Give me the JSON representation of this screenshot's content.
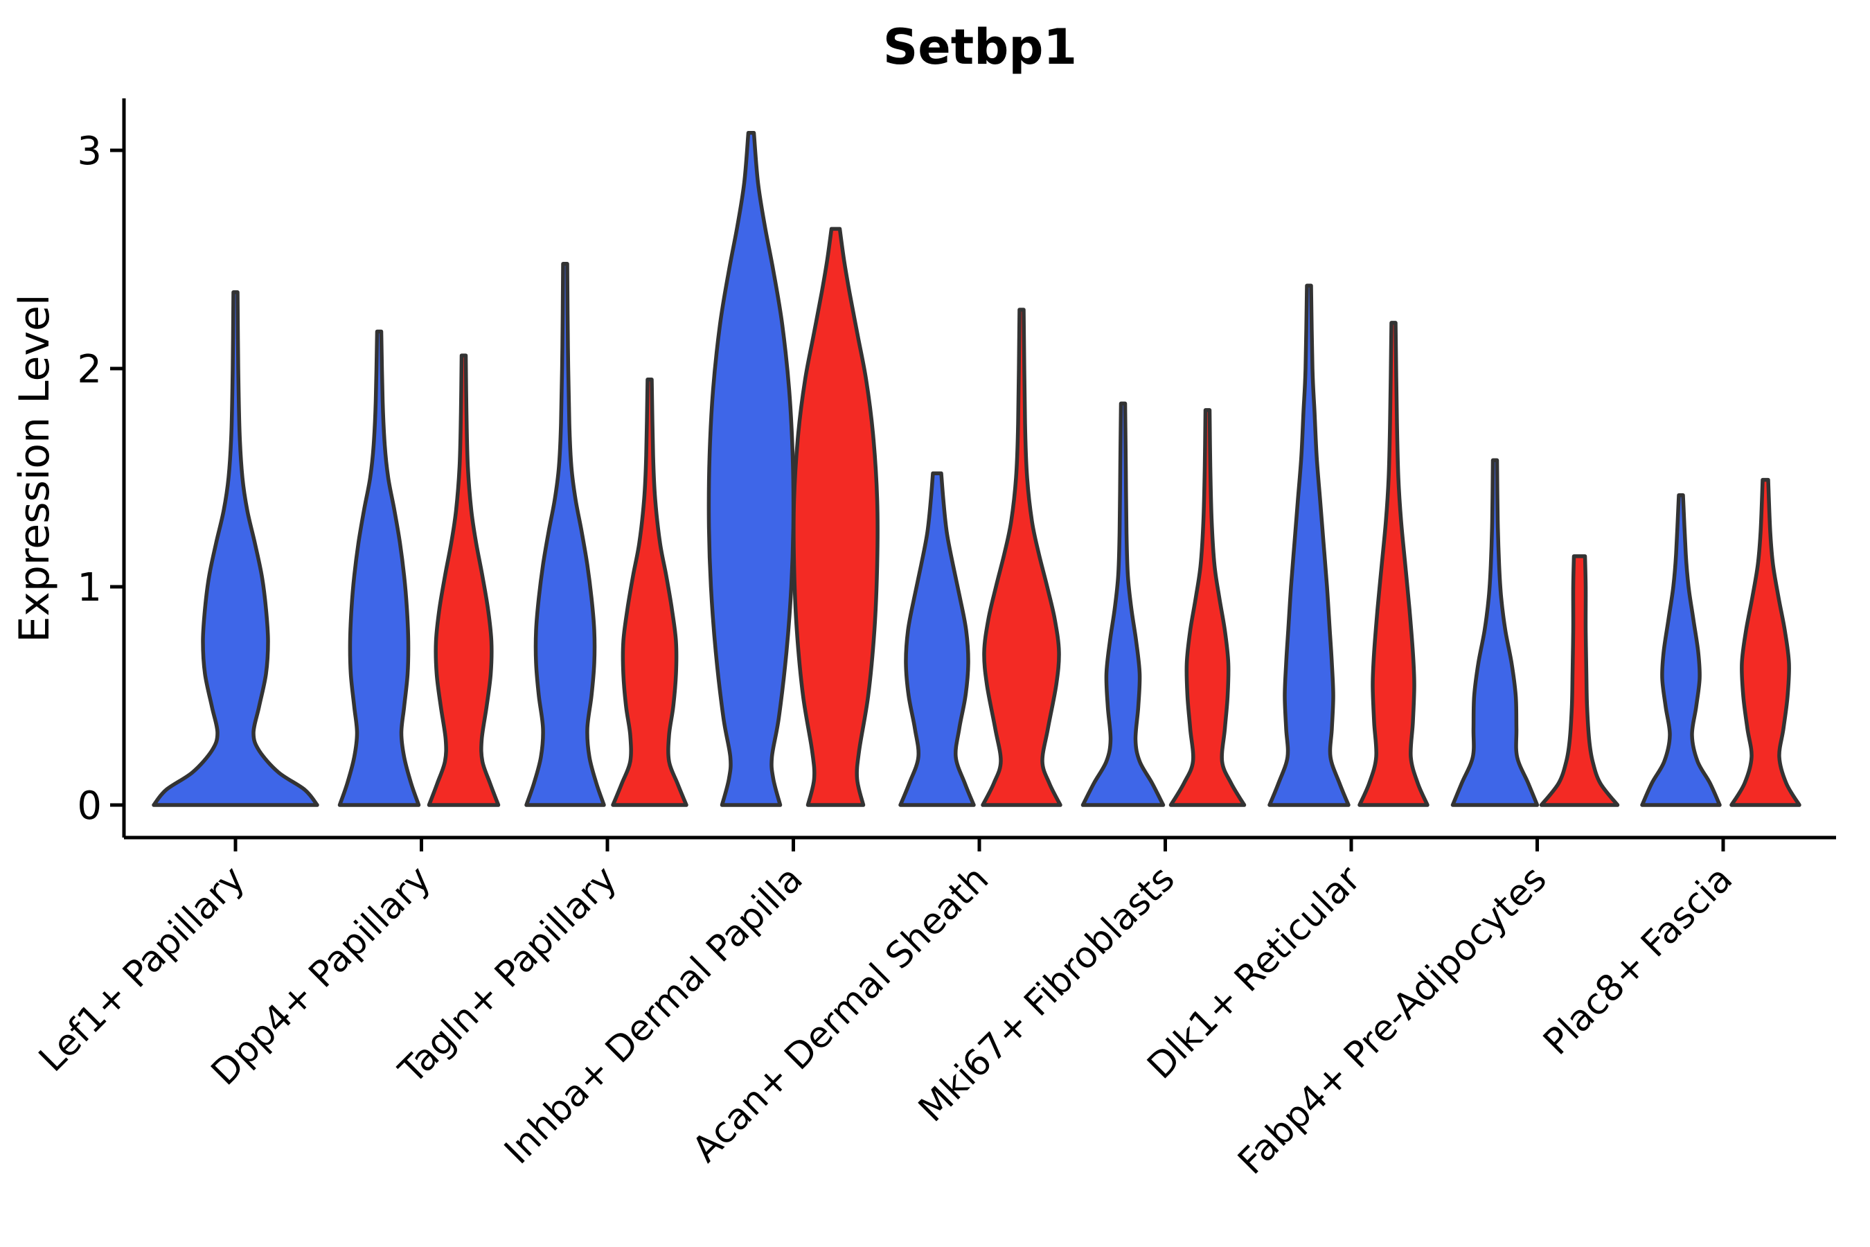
{
  "chart_data": {
    "type": "violin",
    "title": "Setbp1",
    "ylabel": "Expression Level",
    "xlabel": "",
    "ylim": [
      0,
      3.24
    ],
    "yticks": [
      "0",
      "1",
      "2",
      "3"
    ],
    "grid": false,
    "legend": "none",
    "categories": [
      "Lef1+ Papillary",
      "Dpp4+ Papillary",
      "Tagln+ Papillary",
      "Inhba+ Dermal Papilla",
      "Acan+ Dermal Sheath",
      "Mki67+ Fibroblasts",
      "Dlk1+ Reticular",
      "Fabp4+ Pre-Adipocytes",
      "Plac8+ Fascia"
    ],
    "series_colors": {
      "blue": "#3E66E8",
      "red": "#F32A24"
    },
    "outline_color": "#333333",
    "axis_color": "#000000",
    "violins": [
      {
        "category": "Lef1+ Papillary",
        "group": 0,
        "side": "single",
        "color": "blue",
        "max_expression": 2.35,
        "profile": [
          [
            0,
            118
          ],
          [
            0.07,
            100
          ],
          [
            0.15,
            62
          ],
          [
            0.25,
            34
          ],
          [
            0.33,
            26
          ],
          [
            0.45,
            34
          ],
          [
            0.6,
            44
          ],
          [
            0.75,
            47
          ],
          [
            0.9,
            44
          ],
          [
            1.05,
            38
          ],
          [
            1.2,
            28
          ],
          [
            1.35,
            17
          ],
          [
            1.5,
            10
          ],
          [
            1.7,
            6
          ],
          [
            2.0,
            4
          ],
          [
            2.35,
            3
          ]
        ]
      },
      {
        "category": "Dpp4+ Papillary",
        "group": 1,
        "side": "left",
        "color": "blue",
        "max_expression": 2.17,
        "profile": [
          [
            0,
            57
          ],
          [
            0.1,
            46
          ],
          [
            0.22,
            36
          ],
          [
            0.33,
            32
          ],
          [
            0.45,
            36
          ],
          [
            0.6,
            41
          ],
          [
            0.75,
            42
          ],
          [
            0.9,
            40
          ],
          [
            1.05,
            36
          ],
          [
            1.2,
            30
          ],
          [
            1.35,
            22
          ],
          [
            1.5,
            13
          ],
          [
            1.65,
            8
          ],
          [
            1.85,
            5
          ],
          [
            2.17,
            3
          ]
        ]
      },
      {
        "category": "Dpp4+ Papillary",
        "group": 1,
        "side": "right",
        "color": "red",
        "max_expression": 2.06,
        "profile": [
          [
            0,
            50
          ],
          [
            0.1,
            38
          ],
          [
            0.2,
            27
          ],
          [
            0.3,
            26
          ],
          [
            0.45,
            33
          ],
          [
            0.6,
            39
          ],
          [
            0.75,
            40
          ],
          [
            0.9,
            35
          ],
          [
            1.05,
            27
          ],
          [
            1.2,
            18
          ],
          [
            1.35,
            11
          ],
          [
            1.55,
            6
          ],
          [
            1.8,
            4
          ],
          [
            2.06,
            3
          ]
        ]
      },
      {
        "category": "Tagln+ Papillary",
        "group": 2,
        "side": "left",
        "color": "blue",
        "max_expression": 2.48,
        "profile": [
          [
            0,
            56
          ],
          [
            0.1,
            45
          ],
          [
            0.22,
            35
          ],
          [
            0.35,
            32
          ],
          [
            0.5,
            38
          ],
          [
            0.65,
            42
          ],
          [
            0.8,
            42
          ],
          [
            0.95,
            38
          ],
          [
            1.1,
            32
          ],
          [
            1.25,
            24
          ],
          [
            1.4,
            15
          ],
          [
            1.55,
            9
          ],
          [
            1.75,
            6
          ],
          [
            2.1,
            4
          ],
          [
            2.48,
            3
          ]
        ]
      },
      {
        "category": "Tagln+ Papillary",
        "group": 2,
        "side": "right",
        "color": "red",
        "max_expression": 1.95,
        "profile": [
          [
            0,
            53
          ],
          [
            0.1,
            40
          ],
          [
            0.2,
            28
          ],
          [
            0.32,
            28
          ],
          [
            0.45,
            34
          ],
          [
            0.6,
            38
          ],
          [
            0.75,
            38
          ],
          [
            0.9,
            32
          ],
          [
            1.05,
            24
          ],
          [
            1.2,
            15
          ],
          [
            1.4,
            8
          ],
          [
            1.6,
            5
          ],
          [
            1.95,
            3
          ]
        ]
      },
      {
        "category": "Inhba+ Dermal Papilla",
        "group": 3,
        "side": "left",
        "color": "blue",
        "max_expression": 3.08,
        "profile": [
          [
            0,
            42
          ],
          [
            0.12,
            32
          ],
          [
            0.22,
            30
          ],
          [
            0.4,
            40
          ],
          [
            0.7,
            51
          ],
          [
            1.0,
            58
          ],
          [
            1.3,
            61
          ],
          [
            1.6,
            60
          ],
          [
            1.9,
            55
          ],
          [
            2.2,
            45
          ],
          [
            2.45,
            32
          ],
          [
            2.65,
            20
          ],
          [
            2.85,
            10
          ],
          [
            3.08,
            4
          ]
        ]
      },
      {
        "category": "Inhba+ Dermal Papilla",
        "group": 3,
        "side": "right",
        "color": "red",
        "max_expression": 2.64,
        "profile": [
          [
            0,
            40
          ],
          [
            0.12,
            31
          ],
          [
            0.25,
            34
          ],
          [
            0.5,
            47
          ],
          [
            0.8,
            56
          ],
          [
            1.1,
            60
          ],
          [
            1.4,
            60
          ],
          [
            1.7,
            54
          ],
          [
            1.95,
            44
          ],
          [
            2.15,
            32
          ],
          [
            2.35,
            20
          ],
          [
            2.5,
            12
          ],
          [
            2.64,
            6
          ]
        ]
      },
      {
        "category": "Acan+ Dermal Sheath",
        "group": 4,
        "side": "left",
        "color": "blue",
        "max_expression": 1.52,
        "profile": [
          [
            0,
            53
          ],
          [
            0.1,
            40
          ],
          [
            0.22,
            27
          ],
          [
            0.35,
            32
          ],
          [
            0.5,
            41
          ],
          [
            0.65,
            45
          ],
          [
            0.8,
            42
          ],
          [
            0.95,
            33
          ],
          [
            1.1,
            23
          ],
          [
            1.25,
            14
          ],
          [
            1.4,
            9
          ],
          [
            1.52,
            6
          ]
        ]
      },
      {
        "category": "Acan+ Dermal Sheath",
        "group": 4,
        "side": "right",
        "color": "red",
        "max_expression": 2.27,
        "profile": [
          [
            0,
            56
          ],
          [
            0.1,
            40
          ],
          [
            0.2,
            30
          ],
          [
            0.35,
            38
          ],
          [
            0.55,
            50
          ],
          [
            0.7,
            54
          ],
          [
            0.85,
            48
          ],
          [
            1.0,
            37
          ],
          [
            1.15,
            25
          ],
          [
            1.3,
            15
          ],
          [
            1.5,
            8
          ],
          [
            1.75,
            5
          ],
          [
            2.27,
            3
          ]
        ]
      },
      {
        "category": "Mki67+ Fibroblasts",
        "group": 5,
        "side": "left",
        "color": "blue",
        "max_expression": 1.84,
        "profile": [
          [
            0,
            58
          ],
          [
            0.1,
            42
          ],
          [
            0.2,
            24
          ],
          [
            0.3,
            18
          ],
          [
            0.45,
            22
          ],
          [
            0.6,
            24
          ],
          [
            0.75,
            19
          ],
          [
            0.9,
            12
          ],
          [
            1.05,
            7
          ],
          [
            1.25,
            5
          ],
          [
            1.55,
            4
          ],
          [
            1.84,
            3
          ]
        ]
      },
      {
        "category": "Mki67+ Fibroblasts",
        "group": 5,
        "side": "right",
        "color": "red",
        "max_expression": 1.81,
        "profile": [
          [
            0,
            53
          ],
          [
            0.1,
            34
          ],
          [
            0.2,
            21
          ],
          [
            0.35,
            25
          ],
          [
            0.5,
            29
          ],
          [
            0.65,
            30
          ],
          [
            0.8,
            25
          ],
          [
            0.95,
            17
          ],
          [
            1.1,
            10
          ],
          [
            1.3,
            6
          ],
          [
            1.55,
            4
          ],
          [
            1.81,
            3
          ]
        ]
      },
      {
        "category": "Dlk1+ Reticular",
        "group": 6,
        "side": "left",
        "color": "blue",
        "max_expression": 2.38,
        "profile": [
          [
            0,
            57
          ],
          [
            0.1,
            44
          ],
          [
            0.22,
            31
          ],
          [
            0.35,
            33
          ],
          [
            0.5,
            35
          ],
          [
            0.65,
            33
          ],
          [
            0.8,
            30
          ],
          [
            1.0,
            26
          ],
          [
            1.2,
            21
          ],
          [
            1.4,
            16
          ],
          [
            1.6,
            11
          ],
          [
            1.8,
            8
          ],
          [
            2.0,
            5
          ],
          [
            2.38,
            3
          ]
        ]
      },
      {
        "category": "Dlk1+ Reticular",
        "group": 6,
        "side": "right",
        "color": "red",
        "max_expression": 2.21,
        "profile": [
          [
            0,
            49
          ],
          [
            0.1,
            35
          ],
          [
            0.22,
            25
          ],
          [
            0.38,
            28
          ],
          [
            0.55,
            30
          ],
          [
            0.7,
            28
          ],
          [
            0.9,
            23
          ],
          [
            1.1,
            17
          ],
          [
            1.3,
            11
          ],
          [
            1.5,
            7
          ],
          [
            1.75,
            5
          ],
          [
            2.21,
            3
          ]
        ]
      },
      {
        "category": "Fabp4+ Pre-Adipocytes",
        "group": 7,
        "side": "left",
        "color": "blue",
        "max_expression": 1.58,
        "profile": [
          [
            0,
            61
          ],
          [
            0.1,
            48
          ],
          [
            0.22,
            32
          ],
          [
            0.35,
            31
          ],
          [
            0.5,
            30
          ],
          [
            0.65,
            24
          ],
          [
            0.8,
            15
          ],
          [
            0.95,
            9
          ],
          [
            1.1,
            6
          ],
          [
            1.3,
            4
          ],
          [
            1.58,
            3
          ]
        ]
      },
      {
        "category": "Fabp4+ Pre-Adipocytes",
        "group": 7,
        "side": "right",
        "color": "red",
        "max_expression": 1.14,
        "profile": [
          [
            0,
            55
          ],
          [
            0.1,
            30
          ],
          [
            0.2,
            19
          ],
          [
            0.3,
            14
          ],
          [
            0.45,
            11
          ],
          [
            0.6,
            10
          ],
          [
            0.8,
            9
          ],
          [
            1.0,
            9
          ],
          [
            1.14,
            8
          ]
        ]
      },
      {
        "category": "Plac8+ Fascia",
        "group": 8,
        "side": "left",
        "color": "blue",
        "max_expression": 1.42,
        "profile": [
          [
            0,
            56
          ],
          [
            0.1,
            42
          ],
          [
            0.2,
            24
          ],
          [
            0.32,
            16
          ],
          [
            0.45,
            22
          ],
          [
            0.58,
            27
          ],
          [
            0.7,
            25
          ],
          [
            0.85,
            18
          ],
          [
            1.0,
            11
          ],
          [
            1.15,
            7
          ],
          [
            1.42,
            3
          ]
        ]
      },
      {
        "category": "Plac8+ Fascia",
        "group": 8,
        "side": "right",
        "color": "red",
        "max_expression": 1.49,
        "profile": [
          [
            0,
            49
          ],
          [
            0.1,
            30
          ],
          [
            0.22,
            20
          ],
          [
            0.35,
            26
          ],
          [
            0.5,
            32
          ],
          [
            0.65,
            34
          ],
          [
            0.8,
            28
          ],
          [
            0.95,
            19
          ],
          [
            1.1,
            11
          ],
          [
            1.25,
            7
          ],
          [
            1.49,
            4
          ]
        ]
      }
    ]
  }
}
